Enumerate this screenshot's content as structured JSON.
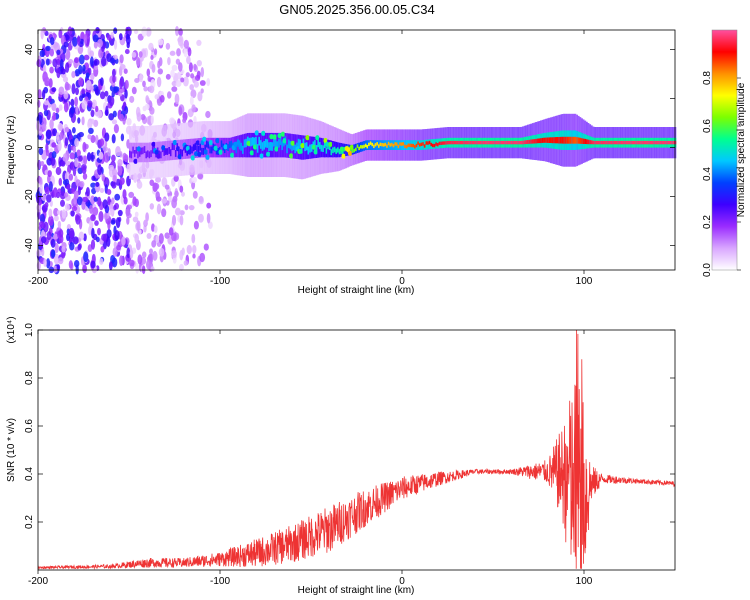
{
  "chart_data": [
    {
      "type": "heatmap",
      "title": "GN05.2025.356.00.05.C34",
      "xlabel": "Height of straight line (km)",
      "ylabel": "Frequency (Hz)",
      "xlim": [
        -200,
        150
      ],
      "ylim": [
        -50,
        48
      ],
      "xticks": [
        -200,
        -100,
        0,
        100
      ],
      "yticks": [
        -40,
        -20,
        0,
        20,
        40
      ],
      "colorbar": {
        "label": "Normalized spectral amplitude",
        "range": [
          0,
          1
        ],
        "ticks": [
          "0.0",
          "0.2",
          "0.4",
          "0.6",
          "0.8"
        ],
        "colors": [
          "#ffffff",
          "#d9a6ff",
          "#9a2cff",
          "#3d00ff",
          "#0040ff",
          "#00c8ff",
          "#00ff90",
          "#7cff00",
          "#ffff00",
          "#ff9000",
          "#ff0000",
          "#ff50a0"
        ]
      },
      "ridge": [
        {
          "x": -140,
          "f": -2,
          "w": 4,
          "a": 0.22
        },
        {
          "x": -125,
          "f": -1,
          "w": 4,
          "a": 0.25
        },
        {
          "x": -110,
          "f": 0,
          "w": 4,
          "a": 0.3
        },
        {
          "x": -95,
          "f": 0,
          "w": 4,
          "a": 0.38
        },
        {
          "x": -85,
          "f": 1,
          "w": 5,
          "a": 0.45
        },
        {
          "x": -75,
          "f": 1,
          "w": 5,
          "a": 0.45
        },
        {
          "x": -65,
          "f": 1,
          "w": 5,
          "a": 0.42
        },
        {
          "x": -55,
          "f": 0,
          "w": 5,
          "a": 0.45
        },
        {
          "x": -45,
          "f": 0,
          "w": 4,
          "a": 0.48
        },
        {
          "x": -35,
          "f": -1,
          "w": 3,
          "a": 0.52
        },
        {
          "x": -28,
          "f": -1,
          "w": 2,
          "a": 0.6
        },
        {
          "x": -20,
          "f": 1,
          "w": 2,
          "a": 0.72
        },
        {
          "x": -10,
          "f": 1,
          "w": 2,
          "a": 0.78
        },
        {
          "x": 0,
          "f": 1,
          "w": 2,
          "a": 0.82
        },
        {
          "x": 10,
          "f": 1,
          "w": 2,
          "a": 0.88
        },
        {
          "x": 25,
          "f": 2,
          "w": 2,
          "a": 0.95
        },
        {
          "x": 45,
          "f": 2,
          "w": 2,
          "a": 0.97
        },
        {
          "x": 65,
          "f": 2,
          "w": 2,
          "a": 0.97
        },
        {
          "x": 78,
          "f": 3,
          "w": 3,
          "a": 0.9
        },
        {
          "x": 88,
          "f": 3,
          "w": 4,
          "a": 0.9
        },
        {
          "x": 95,
          "f": 3,
          "w": 4,
          "a": 0.85
        },
        {
          "x": 105,
          "f": 2,
          "w": 2,
          "a": 0.96
        },
        {
          "x": 125,
          "f": 2,
          "w": 2,
          "a": 0.97
        },
        {
          "x": 150,
          "f": 2,
          "w": 2,
          "a": 0.97
        }
      ]
    },
    {
      "type": "line",
      "xlabel": "Height of straight line (km)",
      "ylabel": "SNR (10 * v/v)",
      "yscale_label": "(x10⁴)",
      "xlim": [
        -200,
        150
      ],
      "ylim": [
        0,
        1
      ],
      "xticks": [
        -200,
        -100,
        0,
        100
      ],
      "yticks": [
        0.2,
        0.4,
        0.6,
        0.8,
        1.0
      ],
      "color": "#ee3333",
      "envelope": {
        "x": [
          -200,
          -160,
          -140,
          -120,
          -100,
          -80,
          -60,
          -40,
          -20,
          0,
          20,
          40,
          60,
          80,
          88,
          92,
          96,
          100,
          104,
          110,
          130,
          150
        ],
        "mean": [
          0.01,
          0.015,
          0.03,
          0.03,
          0.045,
          0.07,
          0.11,
          0.17,
          0.26,
          0.34,
          0.38,
          0.41,
          0.41,
          0.41,
          0.4,
          0.37,
          0.3,
          0.3,
          0.36,
          0.38,
          0.37,
          0.36
        ],
        "amp": [
          0.005,
          0.008,
          0.02,
          0.02,
          0.03,
          0.06,
          0.08,
          0.1,
          0.08,
          0.05,
          0.03,
          0.01,
          0.01,
          0.05,
          0.2,
          0.35,
          0.55,
          0.4,
          0.08,
          0.02,
          0.01,
          0.01
        ]
      }
    }
  ]
}
